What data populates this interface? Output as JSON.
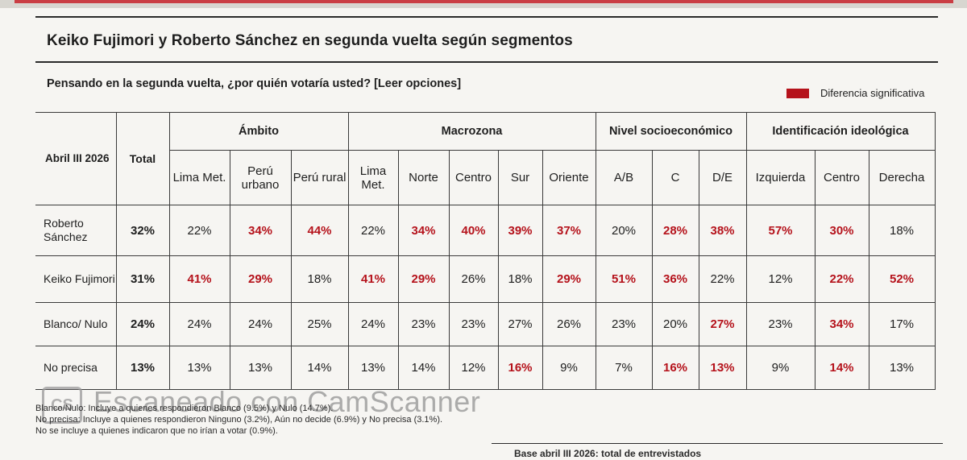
{
  "title": "Keiko Fujimori y Roberto Sánchez en segunda vuelta según segmentos",
  "subtitle": "Pensando en la segunda vuelta, ¿por quién votaría usted? [Leer opciones]",
  "legend": {
    "label": "Diferencia significativa",
    "color": "#b5121b"
  },
  "table": {
    "corner": "Abril III 2026",
    "total_header": "Total",
    "groups": {
      "ambito": "Ámbito",
      "macrozona": "Macrozona",
      "nse": "Nivel socioeconómico",
      "ideologia": "Identificación ideológica"
    },
    "columns": [
      "Lima Met.",
      "Perú urbano",
      "Perú rural",
      "Lima Met.",
      "Norte",
      "Centro",
      "Sur",
      "Oriente",
      "A/B",
      "C",
      "D/E",
      "Izquierda",
      "Centro",
      "Derecha"
    ],
    "rows": [
      {
        "label": "Roberto Sánchez",
        "total": "32%",
        "cells": [
          {
            "v": "22%",
            "sig": false
          },
          {
            "v": "34%",
            "sig": true
          },
          {
            "v": "44%",
            "sig": true
          },
          {
            "v": "22%",
            "sig": false
          },
          {
            "v": "34%",
            "sig": true
          },
          {
            "v": "40%",
            "sig": true
          },
          {
            "v": "39%",
            "sig": true
          },
          {
            "v": "37%",
            "sig": true
          },
          {
            "v": "20%",
            "sig": false
          },
          {
            "v": "28%",
            "sig": true
          },
          {
            "v": "38%",
            "sig": true
          },
          {
            "v": "57%",
            "sig": true
          },
          {
            "v": "30%",
            "sig": true
          },
          {
            "v": "18%",
            "sig": false
          }
        ]
      },
      {
        "label": "Keiko Fujimori",
        "total": "31%",
        "cells": [
          {
            "v": "41%",
            "sig": true
          },
          {
            "v": "29%",
            "sig": true
          },
          {
            "v": "18%",
            "sig": false
          },
          {
            "v": "41%",
            "sig": true
          },
          {
            "v": "29%",
            "sig": true
          },
          {
            "v": "26%",
            "sig": false
          },
          {
            "v": "18%",
            "sig": false
          },
          {
            "v": "29%",
            "sig": true
          },
          {
            "v": "51%",
            "sig": true
          },
          {
            "v": "36%",
            "sig": true
          },
          {
            "v": "22%",
            "sig": false
          },
          {
            "v": "12%",
            "sig": false
          },
          {
            "v": "22%",
            "sig": true
          },
          {
            "v": "52%",
            "sig": true
          }
        ]
      },
      {
        "label": "Blanco/ Nulo",
        "total": "24%",
        "cells": [
          {
            "v": "24%",
            "sig": false
          },
          {
            "v": "24%",
            "sig": false
          },
          {
            "v": "25%",
            "sig": false
          },
          {
            "v": "24%",
            "sig": false
          },
          {
            "v": "23%",
            "sig": false
          },
          {
            "v": "23%",
            "sig": false
          },
          {
            "v": "27%",
            "sig": false
          },
          {
            "v": "26%",
            "sig": false
          },
          {
            "v": "23%",
            "sig": false
          },
          {
            "v": "20%",
            "sig": false
          },
          {
            "v": "27%",
            "sig": true
          },
          {
            "v": "23%",
            "sig": false
          },
          {
            "v": "34%",
            "sig": true
          },
          {
            "v": "17%",
            "sig": false
          }
        ]
      },
      {
        "label": "No precisa",
        "total": "13%",
        "cells": [
          {
            "v": "13%",
            "sig": false
          },
          {
            "v": "13%",
            "sig": false
          },
          {
            "v": "14%",
            "sig": false
          },
          {
            "v": "13%",
            "sig": false
          },
          {
            "v": "14%",
            "sig": false
          },
          {
            "v": "12%",
            "sig": false
          },
          {
            "v": "16%",
            "sig": true
          },
          {
            "v": "9%",
            "sig": false
          },
          {
            "v": "7%",
            "sig": false
          },
          {
            "v": "16%",
            "sig": true
          },
          {
            "v": "13%",
            "sig": true
          },
          {
            "v": "9%",
            "sig": false
          },
          {
            "v": "14%",
            "sig": true
          },
          {
            "v": "13%",
            "sig": false
          }
        ]
      }
    ]
  },
  "footnotes": [
    "Blanco/Nulo: Incluye a quienes respondieron Blanco (9.5%) y Nulo (14.7%).",
    "No precisa: Incluye a quienes respondieron Ninguno (3.2%), Aún no decide (6.9%) y No precisa (3.1%).",
    "No se incluye a quienes indicaron que no irían a votar (0.9%)."
  ],
  "base_note": "Base abril III 2026: total de entrevistados",
  "watermark": {
    "logo": "CS",
    "text": "Escaneado con CamScanner"
  }
}
